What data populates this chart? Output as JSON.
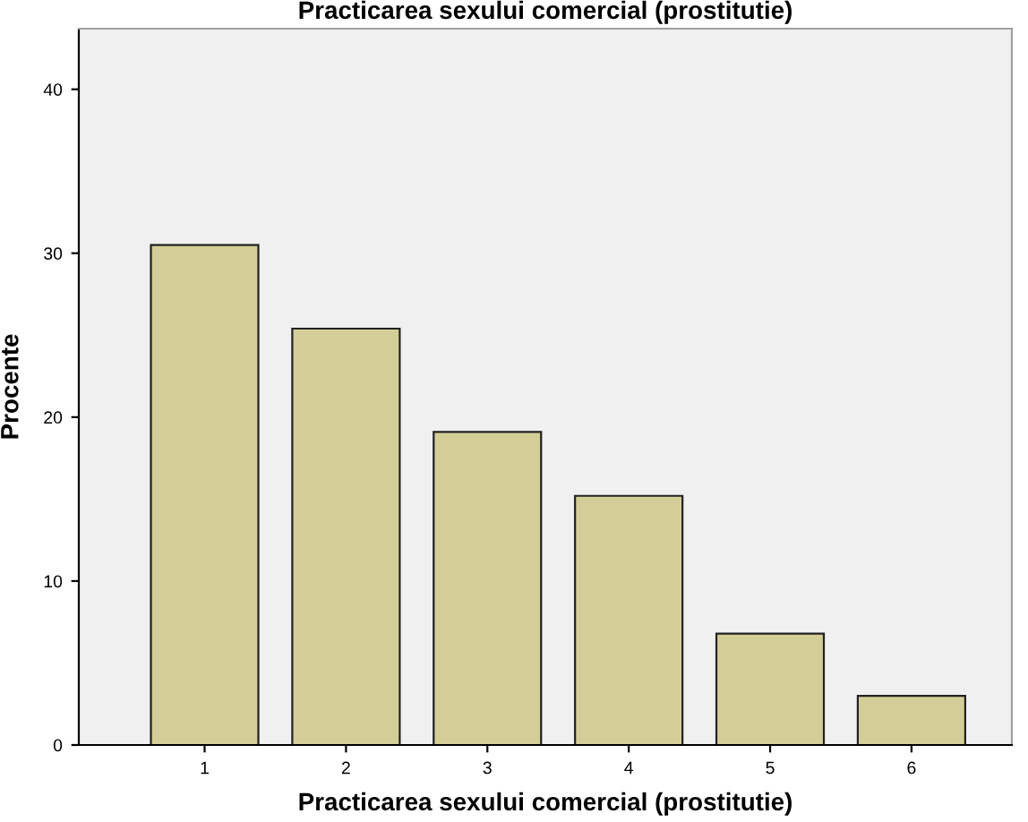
{
  "chart_data": {
    "type": "bar",
    "title": "Practicarea sexului comercial (prostitutie)",
    "xlabel": "Practicarea sexului comercial (prostitutie)",
    "ylabel": "Procente",
    "categories": [
      "1",
      "2",
      "3",
      "4",
      "5",
      "6"
    ],
    "values": [
      30.5,
      25.4,
      19.1,
      15.2,
      6.8,
      3.0
    ],
    "color": "#d3ce97",
    "ylim": [
      0,
      43.7
    ],
    "yticks": [
      0,
      10,
      20,
      30,
      40
    ],
    "grid": false,
    "legend": false
  }
}
